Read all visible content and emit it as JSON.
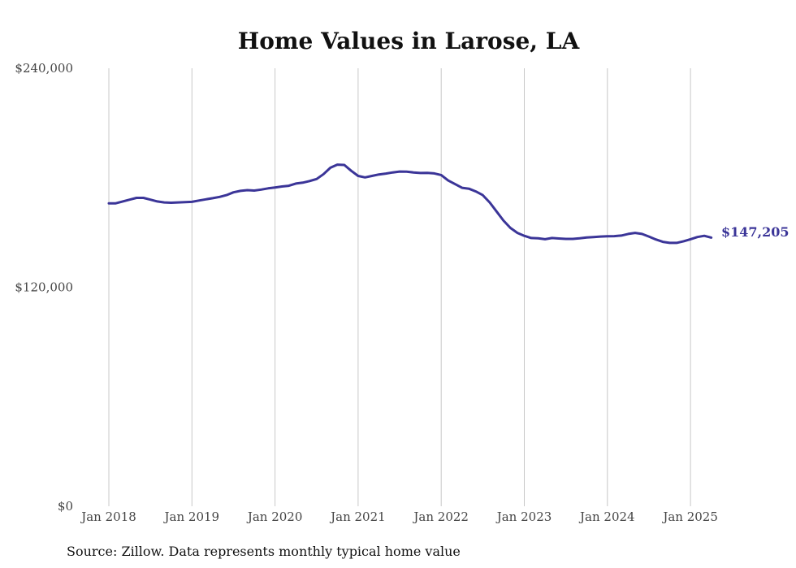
{
  "chart_data": {
    "type": "line",
    "title": "Home Values in Larose, LA",
    "source": "Source: Zillow. Data represents monthly typical home value",
    "ylim": [
      0,
      240000
    ],
    "yticks": [
      {
        "value": 0,
        "label": "$0"
      },
      {
        "value": 120000,
        "label": "$120,000"
      },
      {
        "value": 240000,
        "label": "$240,000"
      }
    ],
    "xticks": [
      {
        "date": "2018-01",
        "label": "Jan 2018"
      },
      {
        "date": "2019-01",
        "label": "Jan 2019"
      },
      {
        "date": "2020-01",
        "label": "Jan 2020"
      },
      {
        "date": "2021-01",
        "label": "Jan 2021"
      },
      {
        "date": "2022-01",
        "label": "Jan 2022"
      },
      {
        "date": "2023-01",
        "label": "Jan 2023"
      },
      {
        "date": "2024-01",
        "label": "Jan 2024"
      },
      {
        "date": "2025-01",
        "label": "Jan 2025"
      }
    ],
    "grid": {
      "vertical": true,
      "horizontal": false
    },
    "line_color": "#3b3598",
    "end_label": "$147,205",
    "series": [
      {
        "x": [
          "2018-01",
          "2018-02",
          "2018-03",
          "2018-04",
          "2018-05",
          "2018-06",
          "2018-07",
          "2018-08",
          "2018-09",
          "2018-10",
          "2018-11",
          "2018-12",
          "2019-01",
          "2019-02",
          "2019-03",
          "2019-04",
          "2019-05",
          "2019-06",
          "2019-07",
          "2019-08",
          "2019-09",
          "2019-10",
          "2019-11",
          "2019-12",
          "2020-01",
          "2020-02",
          "2020-03",
          "2020-04",
          "2020-05",
          "2020-06",
          "2020-07",
          "2020-08",
          "2020-09",
          "2020-10",
          "2020-11",
          "2020-12",
          "2021-01",
          "2021-02",
          "2021-03",
          "2021-04",
          "2021-05",
          "2021-06",
          "2021-07",
          "2021-08",
          "2021-09",
          "2021-10",
          "2021-11",
          "2021-12",
          "2022-01",
          "2022-02",
          "2022-03",
          "2022-04",
          "2022-05",
          "2022-06",
          "2022-07",
          "2022-08",
          "2022-09",
          "2022-10",
          "2022-11",
          "2022-12",
          "2023-01",
          "2023-02",
          "2023-03",
          "2023-04",
          "2023-05",
          "2023-06",
          "2023-07",
          "2023-08",
          "2023-09",
          "2023-10",
          "2023-11",
          "2023-12",
          "2024-01",
          "2024-02",
          "2024-03",
          "2024-04",
          "2024-05",
          "2024-06",
          "2024-07",
          "2024-08",
          "2024-09",
          "2024-10",
          "2024-11",
          "2024-12",
          "2025-01",
          "2025-02",
          "2025-03",
          "2025-04"
        ],
        "values": [
          166000,
          166000,
          167000,
          168000,
          169000,
          169000,
          168000,
          167000,
          166500,
          166300,
          166500,
          166600,
          166800,
          167500,
          168200,
          168800,
          169500,
          170500,
          172000,
          172800,
          173200,
          173000,
          173500,
          174200,
          174700,
          175200,
          175600,
          176800,
          177300,
          178200,
          179300,
          182000,
          185500,
          187200,
          187000,
          183800,
          181000,
          180200,
          181000,
          181800,
          182300,
          182900,
          183400,
          183300,
          182900,
          182600,
          182700,
          182400,
          181500,
          178500,
          176500,
          174500,
          174000,
          172500,
          170500,
          166500,
          161500,
          156500,
          152500,
          149800,
          148200,
          147000,
          146800,
          146300,
          147000,
          146700,
          146500,
          146500,
          146800,
          147300,
          147500,
          147800,
          147900,
          148000,
          148300,
          149200,
          149800,
          149200,
          147800,
          146200,
          144900,
          144300,
          144300,
          145200,
          146300,
          147500,
          148200,
          147205
        ]
      }
    ]
  }
}
